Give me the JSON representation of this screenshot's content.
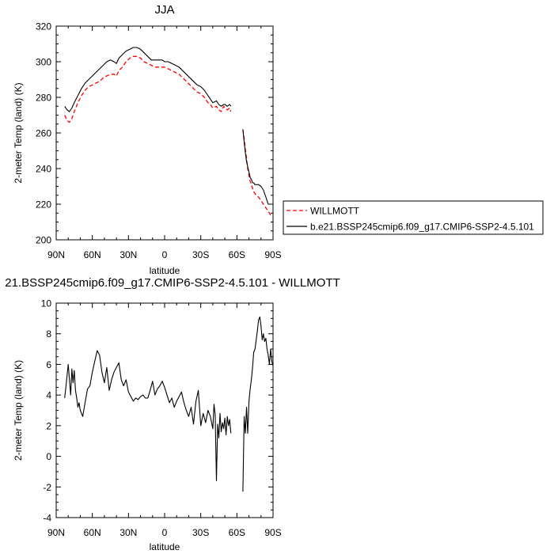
{
  "chart_data": [
    {
      "type": "line",
      "title": "JJA",
      "xlabel": "latitude",
      "ylabel": "2-meter Temp (land) (K)",
      "xlim": [
        90,
        -90
      ],
      "ylim": [
        200,
        320
      ],
      "xticks": [
        90,
        60,
        30,
        0,
        -30,
        -60,
        -90
      ],
      "xtick_labels": [
        "90N",
        "60N",
        "30N",
        "0",
        "30S",
        "60S",
        "90S"
      ],
      "yticks": [
        200,
        220,
        240,
        260,
        280,
        300,
        320
      ],
      "ytick_labels": [
        "200",
        "220",
        "240",
        "260",
        "280",
        "300",
        "320"
      ],
      "grid": false,
      "legend": "right",
      "series": [
        {
          "name": "WILLMOTT",
          "color": "#ff0000",
          "style": "dashed",
          "segments": [
            {
              "x": [
                83,
                81,
                79,
                77,
                75,
                72,
                69,
                66,
                63,
                60,
                57,
                54,
                51,
                48,
                45,
                42,
                40,
                38,
                35,
                32,
                29,
                26,
                23,
                20,
                17,
                14,
                11,
                8,
                5,
                2,
                0,
                -3,
                -6,
                -9,
                -12,
                -15,
                -18,
                -21,
                -24,
                -27,
                -30,
                -33,
                -36,
                -38,
                -40,
                -43,
                -45,
                -47,
                -49,
                -50,
                -52,
                -54,
                -55
              ],
              "y": [
                270,
                267,
                266,
                268,
                272,
                277,
                281,
                284,
                286,
                287,
                288,
                289,
                291,
                292,
                293,
                293,
                292,
                295,
                297,
                300,
                302,
                303,
                303,
                302,
                300,
                299,
                298,
                297,
                297,
                297,
                297,
                296,
                295,
                294,
                293,
                291,
                289,
                287,
                285,
                283,
                282,
                280,
                277,
                276,
                274,
                275,
                273,
                272,
                275,
                274,
                273,
                274,
                272
              ]
            },
            {
              "x": [
                -65,
                -66,
                -67,
                -68,
                -69,
                -70,
                -71,
                -72,
                -73,
                -74,
                -75,
                -76,
                -78,
                -80,
                -82,
                -84,
                -86,
                -88,
                -90
              ],
              "y": [
                262,
                257,
                251,
                246,
                240,
                236,
                233,
                231,
                229,
                227,
                226,
                225,
                224,
                222,
                220,
                218,
                216,
                214,
                214
              ]
            }
          ]
        },
        {
          "name": "b.e21.BSSP245cmip6.f09_g17.CMIP6-SSP2-4.5.101",
          "color": "#000000",
          "style": "solid",
          "segments": [
            {
              "x": [
                83,
                81,
                79,
                77,
                75,
                72,
                69,
                66,
                63,
                60,
                57,
                54,
                51,
                48,
                45,
                42,
                40,
                38,
                35,
                32,
                29,
                26,
                23,
                20,
                17,
                14,
                11,
                8,
                5,
                2,
                0,
                -3,
                -6,
                -9,
                -12,
                -15,
                -18,
                -21,
                -24,
                -27,
                -30,
                -33,
                -36,
                -38,
                -40,
                -43,
                -45,
                -47,
                -49,
                -50,
                -52,
                -54,
                -55
              ],
              "y": [
                275,
                273,
                272,
                274,
                277,
                281,
                285,
                288,
                290,
                292,
                294,
                296,
                298,
                300,
                301,
                300,
                299,
                302,
                304,
                306,
                307,
                308,
                308,
                307,
                305,
                303,
                301,
                301,
                301,
                301,
                300,
                300,
                299,
                298,
                297,
                295,
                293,
                291,
                289,
                287,
                286,
                284,
                281,
                279,
                277,
                278,
                276,
                275,
                276,
                276,
                275,
                276,
                275
              ]
            },
            {
              "x": [
                -65,
                -66,
                -67,
                -68,
                -69,
                -70,
                -71,
                -72,
                -73,
                -74,
                -75,
                -76,
                -78,
                -80,
                -82,
                -84,
                -86,
                -88,
                -90
              ],
              "y": [
                262,
                255,
                249,
                244,
                241,
                238,
                235,
                234,
                232,
                232,
                231,
                231,
                231,
                230,
                228,
                224,
                220,
                220,
                220
              ]
            }
          ]
        }
      ]
    },
    {
      "type": "line",
      "title": "21.BSSP245cmip6.f09_g17.CMIP6-SSP2-4.5.101 - WILLMOTT",
      "xlabel": "latitude",
      "ylabel": "2-meter Temp (land) (K)",
      "xlim": [
        90,
        -90
      ],
      "ylim": [
        -4,
        10
      ],
      "xticks": [
        90,
        60,
        30,
        0,
        -30,
        -60,
        -90
      ],
      "xtick_labels": [
        "90N",
        "60N",
        "30N",
        "0",
        "30S",
        "60S",
        "90S"
      ],
      "yticks": [
        -4,
        -2,
        0,
        2,
        4,
        6,
        8,
        10
      ],
      "ytick_labels": [
        "-4",
        "-2",
        "0",
        "2",
        "4",
        "6",
        "8",
        "10"
      ],
      "grid": false,
      "series": [
        {
          "color": "#000000",
          "style": "solid",
          "segments": [
            {
              "x": [
                83,
                82,
                80,
                78,
                77,
                76,
                75,
                74,
                73,
                72,
                71,
                70,
                69,
                68,
                66,
                64,
                62,
                60,
                58,
                56,
                54,
                52,
                50,
                48,
                46,
                44,
                42,
                40,
                38,
                36,
                34,
                32,
                30,
                28,
                26,
                24,
                22,
                20,
                18,
                16,
                14,
                12,
                10,
                8,
                6,
                4,
                2,
                0,
                -2,
                -4,
                -6,
                -8,
                -10,
                -12,
                -14,
                -16,
                -18,
                -20,
                -22,
                -24,
                -26,
                -28,
                -30,
                -32,
                -34,
                -36,
                -38,
                -40,
                -41,
                -42,
                -43,
                -44,
                -45,
                -46,
                -47,
                -48,
                -49,
                -50,
                -51,
                -52,
                -53,
                -54,
                -55
              ],
              "y": [
                3.8,
                4.5,
                6.0,
                4.0,
                5.7,
                4.8,
                5.6,
                4.3,
                3.8,
                3.2,
                3.5,
                3.0,
                2.8,
                2.6,
                3.5,
                4.4,
                4.6,
                5.5,
                6.2,
                6.9,
                6.6,
                5.5,
                4.8,
                5.8,
                4.3,
                5.0,
                5.5,
                5.8,
                6.1,
                5.0,
                4.6,
                5.0,
                4.2,
                3.9,
                3.6,
                3.8,
                3.7,
                3.9,
                4.0,
                3.8,
                3.8,
                4.3,
                4.9,
                4.0,
                4.4,
                4.6,
                4.9,
                4.5,
                4.0,
                3.5,
                3.8,
                3.2,
                3.6,
                3.9,
                4.2,
                3.5,
                3.0,
                2.6,
                3.2,
                2.1,
                3.6,
                4.3,
                2.0,
                2.8,
                2.2,
                3.0,
                2.6,
                1.8,
                3.4,
                2.7,
                -1.6,
                2.1,
                1.2,
                2.8,
                1.6,
                2.2,
                1.8,
                2.5,
                1.4,
                2.6,
                2.0,
                2.4,
                1.5
              ]
            },
            {
              "x": [
                -65,
                -66,
                -67,
                -68,
                -69,
                -70,
                -71,
                -72,
                -73,
                -74,
                -75,
                -76,
                -77,
                -78,
                -79,
                -80,
                -81,
                -82,
                -83,
                -84,
                -85,
                -86,
                -87,
                -88,
                -89,
                -90
              ],
              "y": [
                -2.3,
                2.6,
                1.5,
                3.2,
                1.5,
                3.6,
                4.4,
                5.0,
                5.8,
                6.8,
                7.0,
                7.6,
                8.2,
                8.9,
                9.1,
                8.5,
                7.6,
                8.0,
                7.5,
                7.7,
                7.0,
                6.6,
                6.0,
                7.0,
                6.2,
                5.9
              ]
            }
          ]
        }
      ]
    }
  ]
}
